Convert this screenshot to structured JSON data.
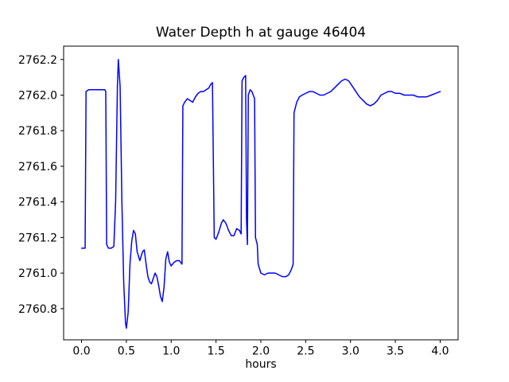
{
  "figure": {
    "background": "#ffffff"
  },
  "chart_data": {
    "type": "line",
    "title": "Water Depth h at gauge 46404",
    "xlabel": "hours",
    "ylabel": "",
    "legend": null,
    "grid": false,
    "line_color": "#0000ff",
    "axes_color": "#000000",
    "xlim": [
      -0.2,
      4.2
    ],
    "ylim": [
      2760.625,
      2762.275
    ],
    "xticks": [
      0.0,
      0.5,
      1.0,
      1.5,
      2.0,
      2.5,
      3.0,
      3.5,
      4.0
    ],
    "xtick_labels": [
      "0.0",
      "0.5",
      "1.0",
      "1.5",
      "2.0",
      "2.5",
      "3.0",
      "3.5",
      "4.0"
    ],
    "yticks": [
      2760.8,
      2761.0,
      2761.2,
      2761.4,
      2761.6,
      2761.8,
      2762.0,
      2762.2
    ],
    "ytick_labels": [
      "2760.8",
      "2761.0",
      "2761.2",
      "2761.4",
      "2761.6",
      "2761.8",
      "2762.0",
      "2762.2"
    ],
    "series_name": "Water Depth h",
    "points": [
      [
        0.0,
        2761.14
      ],
      [
        0.04,
        2761.14
      ],
      [
        0.05,
        2762.02
      ],
      [
        0.08,
        2762.03
      ],
      [
        0.15,
        2762.03
      ],
      [
        0.22,
        2762.03
      ],
      [
        0.26,
        2762.03
      ],
      [
        0.27,
        2762.02
      ],
      [
        0.28,
        2761.16
      ],
      [
        0.3,
        2761.14
      ],
      [
        0.33,
        2761.14
      ],
      [
        0.36,
        2761.15
      ],
      [
        0.38,
        2761.4
      ],
      [
        0.4,
        2762.05
      ],
      [
        0.41,
        2762.2
      ],
      [
        0.43,
        2762.05
      ],
      [
        0.45,
        2761.4
      ],
      [
        0.47,
        2760.95
      ],
      [
        0.49,
        2760.72
      ],
      [
        0.5,
        2760.69
      ],
      [
        0.52,
        2760.78
      ],
      [
        0.54,
        2761.05
      ],
      [
        0.56,
        2761.18
      ],
      [
        0.58,
        2761.24
      ],
      [
        0.6,
        2761.22
      ],
      [
        0.62,
        2761.12
      ],
      [
        0.65,
        2761.07
      ],
      [
        0.68,
        2761.12
      ],
      [
        0.7,
        2761.13
      ],
      [
        0.72,
        2761.05
      ],
      [
        0.74,
        2760.98
      ],
      [
        0.76,
        2760.95
      ],
      [
        0.78,
        2760.94
      ],
      [
        0.8,
        2760.97
      ],
      [
        0.82,
        2761.0
      ],
      [
        0.84,
        2760.98
      ],
      [
        0.86,
        2760.93
      ],
      [
        0.88,
        2760.87
      ],
      [
        0.9,
        2760.84
      ],
      [
        0.92,
        2760.92
      ],
      [
        0.94,
        2761.08
      ],
      [
        0.96,
        2761.12
      ],
      [
        0.98,
        2761.06
      ],
      [
        1.0,
        2761.04
      ],
      [
        1.03,
        2761.06
      ],
      [
        1.06,
        2761.07
      ],
      [
        1.09,
        2761.07
      ],
      [
        1.12,
        2761.05
      ],
      [
        1.13,
        2761.94
      ],
      [
        1.15,
        2761.96
      ],
      [
        1.18,
        2761.98
      ],
      [
        1.21,
        2761.97
      ],
      [
        1.24,
        2761.96
      ],
      [
        1.27,
        2761.99
      ],
      [
        1.3,
        2762.01
      ],
      [
        1.33,
        2762.02
      ],
      [
        1.36,
        2762.02
      ],
      [
        1.39,
        2762.03
      ],
      [
        1.42,
        2762.04
      ],
      [
        1.44,
        2762.06
      ],
      [
        1.46,
        2762.07
      ],
      [
        1.48,
        2761.2
      ],
      [
        1.5,
        2761.19
      ],
      [
        1.53,
        2761.23
      ],
      [
        1.56,
        2761.28
      ],
      [
        1.58,
        2761.3
      ],
      [
        1.61,
        2761.28
      ],
      [
        1.64,
        2761.24
      ],
      [
        1.67,
        2761.21
      ],
      [
        1.7,
        2761.21
      ],
      [
        1.73,
        2761.25
      ],
      [
        1.76,
        2761.24
      ],
      [
        1.78,
        2761.22
      ],
      [
        1.79,
        2762.08
      ],
      [
        1.81,
        2762.1
      ],
      [
        1.83,
        2762.11
      ],
      [
        1.84,
        2761.3
      ],
      [
        1.85,
        2761.16
      ],
      [
        1.86,
        2762.0
      ],
      [
        1.88,
        2762.03
      ],
      [
        1.9,
        2762.02
      ],
      [
        1.93,
        2761.98
      ],
      [
        1.94,
        2761.2
      ],
      [
        1.96,
        2761.16
      ],
      [
        1.97,
        2761.05
      ],
      [
        2.0,
        2761.0
      ],
      [
        2.04,
        2760.99
      ],
      [
        2.08,
        2761.0
      ],
      [
        2.12,
        2761.0
      ],
      [
        2.16,
        2761.0
      ],
      [
        2.2,
        2760.99
      ],
      [
        2.24,
        2760.98
      ],
      [
        2.28,
        2760.98
      ],
      [
        2.31,
        2760.99
      ],
      [
        2.34,
        2761.02
      ],
      [
        2.36,
        2761.05
      ],
      [
        2.37,
        2761.9
      ],
      [
        2.4,
        2761.96
      ],
      [
        2.43,
        2761.99
      ],
      [
        2.46,
        2762.0
      ],
      [
        2.5,
        2762.01
      ],
      [
        2.54,
        2762.02
      ],
      [
        2.58,
        2762.02
      ],
      [
        2.62,
        2762.01
      ],
      [
        2.66,
        2762.0
      ],
      [
        2.7,
        2762.0
      ],
      [
        2.74,
        2762.01
      ],
      [
        2.78,
        2762.02
      ],
      [
        2.82,
        2762.04
      ],
      [
        2.86,
        2762.06
      ],
      [
        2.9,
        2762.08
      ],
      [
        2.94,
        2762.09
      ],
      [
        2.98,
        2762.08
      ],
      [
        3.02,
        2762.05
      ],
      [
        3.06,
        2762.02
      ],
      [
        3.1,
        2761.99
      ],
      [
        3.14,
        2761.97
      ],
      [
        3.18,
        2761.95
      ],
      [
        3.22,
        2761.94
      ],
      [
        3.26,
        2761.95
      ],
      [
        3.3,
        2761.97
      ],
      [
        3.34,
        2762.0
      ],
      [
        3.38,
        2762.01
      ],
      [
        3.42,
        2762.02
      ],
      [
        3.46,
        2762.02
      ],
      [
        3.5,
        2762.01
      ],
      [
        3.55,
        2762.01
      ],
      [
        3.6,
        2762.0
      ],
      [
        3.65,
        2762.0
      ],
      [
        3.7,
        2762.0
      ],
      [
        3.75,
        2761.99
      ],
      [
        3.8,
        2761.99
      ],
      [
        3.85,
        2761.99
      ],
      [
        3.9,
        2762.0
      ],
      [
        3.95,
        2762.01
      ],
      [
        4.0,
        2762.02
      ]
    ]
  }
}
